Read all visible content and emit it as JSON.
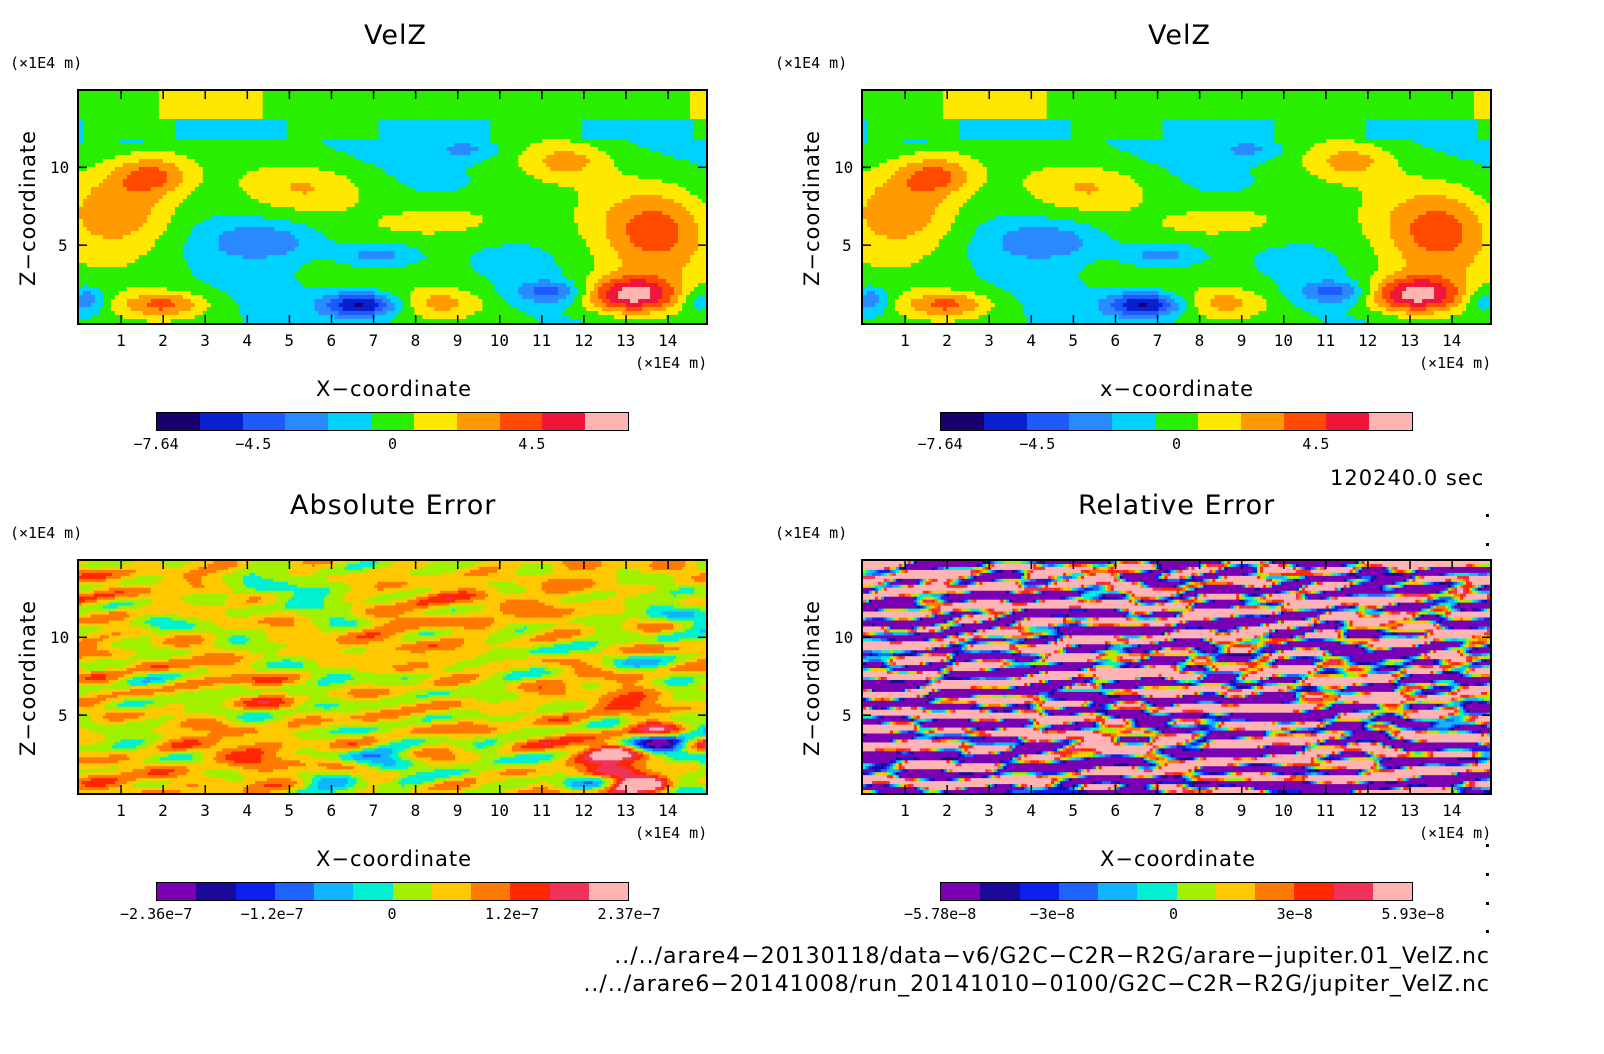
{
  "chart_data": [
    {
      "type": "heatmap",
      "title": "VelZ",
      "xlabel": "X−coordinate",
      "ylabel": "Z−coordinate",
      "x_unit": "(×1E4 m)",
      "y_unit": "(×1E4 m)",
      "xticks": [
        "1",
        "2",
        "3",
        "4",
        "5",
        "6",
        "7",
        "8",
        "9",
        "10",
        "11",
        "12",
        "13",
        "14"
      ],
      "yticks": [
        "5",
        "10"
      ],
      "xlim": [
        0,
        14.9
      ],
      "ylim": [
        0,
        14.9
      ],
      "colorbar": {
        "colors": [
          "#1a006e",
          "#0a1fd0",
          "#1e5bff",
          "#2a8aff",
          "#00d2ff",
          "#2aee00",
          "#ffe800",
          "#ff9a00",
          "#ff4a00",
          "#f0163a",
          "#ffb4b4"
        ],
        "labels": [
          "−7.64",
          "−4.5",
          "0",
          "4.5"
        ],
        "range": [
          -7.64,
          7.64
        ]
      },
      "field": "smooth"
    },
    {
      "type": "heatmap",
      "title": "VelZ",
      "xlabel": "x−coordinate",
      "ylabel": "Z−coordinate",
      "x_unit": "(×1E4 m)",
      "y_unit": "(×1E4 m)",
      "xticks": [
        "1",
        "2",
        "3",
        "4",
        "5",
        "6",
        "7",
        "8",
        "9",
        "10",
        "11",
        "12",
        "13",
        "14"
      ],
      "yticks": [
        "5",
        "10"
      ],
      "xlim": [
        0,
        14.9
      ],
      "ylim": [
        0,
        14.9
      ],
      "colorbar": {
        "colors": [
          "#1a006e",
          "#0a1fd0",
          "#1e5bff",
          "#2a8aff",
          "#00d2ff",
          "#2aee00",
          "#ffe800",
          "#ff9a00",
          "#ff4a00",
          "#f0163a",
          "#ffb4b4"
        ],
        "labels": [
          "−7.64",
          "−4.5",
          "0",
          "4.5"
        ],
        "range": [
          -7.64,
          7.64
        ]
      },
      "field": "smooth"
    },
    {
      "type": "heatmap",
      "title": "Absolute Error",
      "xlabel": "X−coordinate",
      "ylabel": "Z−coordinate",
      "x_unit": "(×1E4 m)",
      "y_unit": "(×1E4 m)",
      "xticks": [
        "1",
        "2",
        "3",
        "4",
        "5",
        "6",
        "7",
        "8",
        "9",
        "10",
        "11",
        "12",
        "13",
        "14"
      ],
      "yticks": [
        "5",
        "10"
      ],
      "xlim": [
        0,
        14.9
      ],
      "ylim": [
        0,
        14.9
      ],
      "colorbar": {
        "colors": [
          "#7a00b4",
          "#1a0a9a",
          "#0a1ff0",
          "#1e64ff",
          "#10b4ff",
          "#00f0d2",
          "#a0f000",
          "#ffc800",
          "#ff7800",
          "#ff2800",
          "#f0325a",
          "#ffb4b4"
        ],
        "labels": [
          "−2.36e−7",
          "−1.2e−7",
          "0",
          "1.2e−7",
          "2.37e−7"
        ],
        "range": [
          -2.36e-07,
          2.37e-07
        ]
      },
      "field": "noise-low"
    },
    {
      "type": "heatmap",
      "title": "Relative Error",
      "xlabel": "X−coordinate",
      "ylabel": "Z−coordinate",
      "x_unit": "(×1E4 m)",
      "y_unit": "(×1E4 m)",
      "xticks": [
        "1",
        "2",
        "3",
        "4",
        "5",
        "6",
        "7",
        "8",
        "9",
        "10",
        "11",
        "12",
        "13",
        "14"
      ],
      "yticks": [
        "5",
        "10"
      ],
      "xlim": [
        0,
        14.9
      ],
      "ylim": [
        0,
        14.9
      ],
      "colorbar": {
        "colors": [
          "#7a00b4",
          "#1a0a9a",
          "#0a1ff0",
          "#1e64ff",
          "#10b4ff",
          "#00f0d2",
          "#a0f000",
          "#ffc800",
          "#ff7800",
          "#ff2800",
          "#f0325a",
          "#ffb4b4"
        ],
        "labels": [
          "−5.78e−8",
          "−3e−8",
          "0",
          "3e−8",
          "5.93e−8"
        ],
        "range": [
          -5.78e-08,
          5.93e-08
        ]
      },
      "field": "noise-high"
    }
  ],
  "timestamp": "120240.0 sec",
  "files": [
    "../../arare4−20130118/data−v6/G2C−C2R−R2G/arare−jupiter.01_VelZ.nc",
    "../../arare6−20141008/run_20141010−0100/G2C−C2R−R2G/jupiter_VelZ.nc"
  ]
}
